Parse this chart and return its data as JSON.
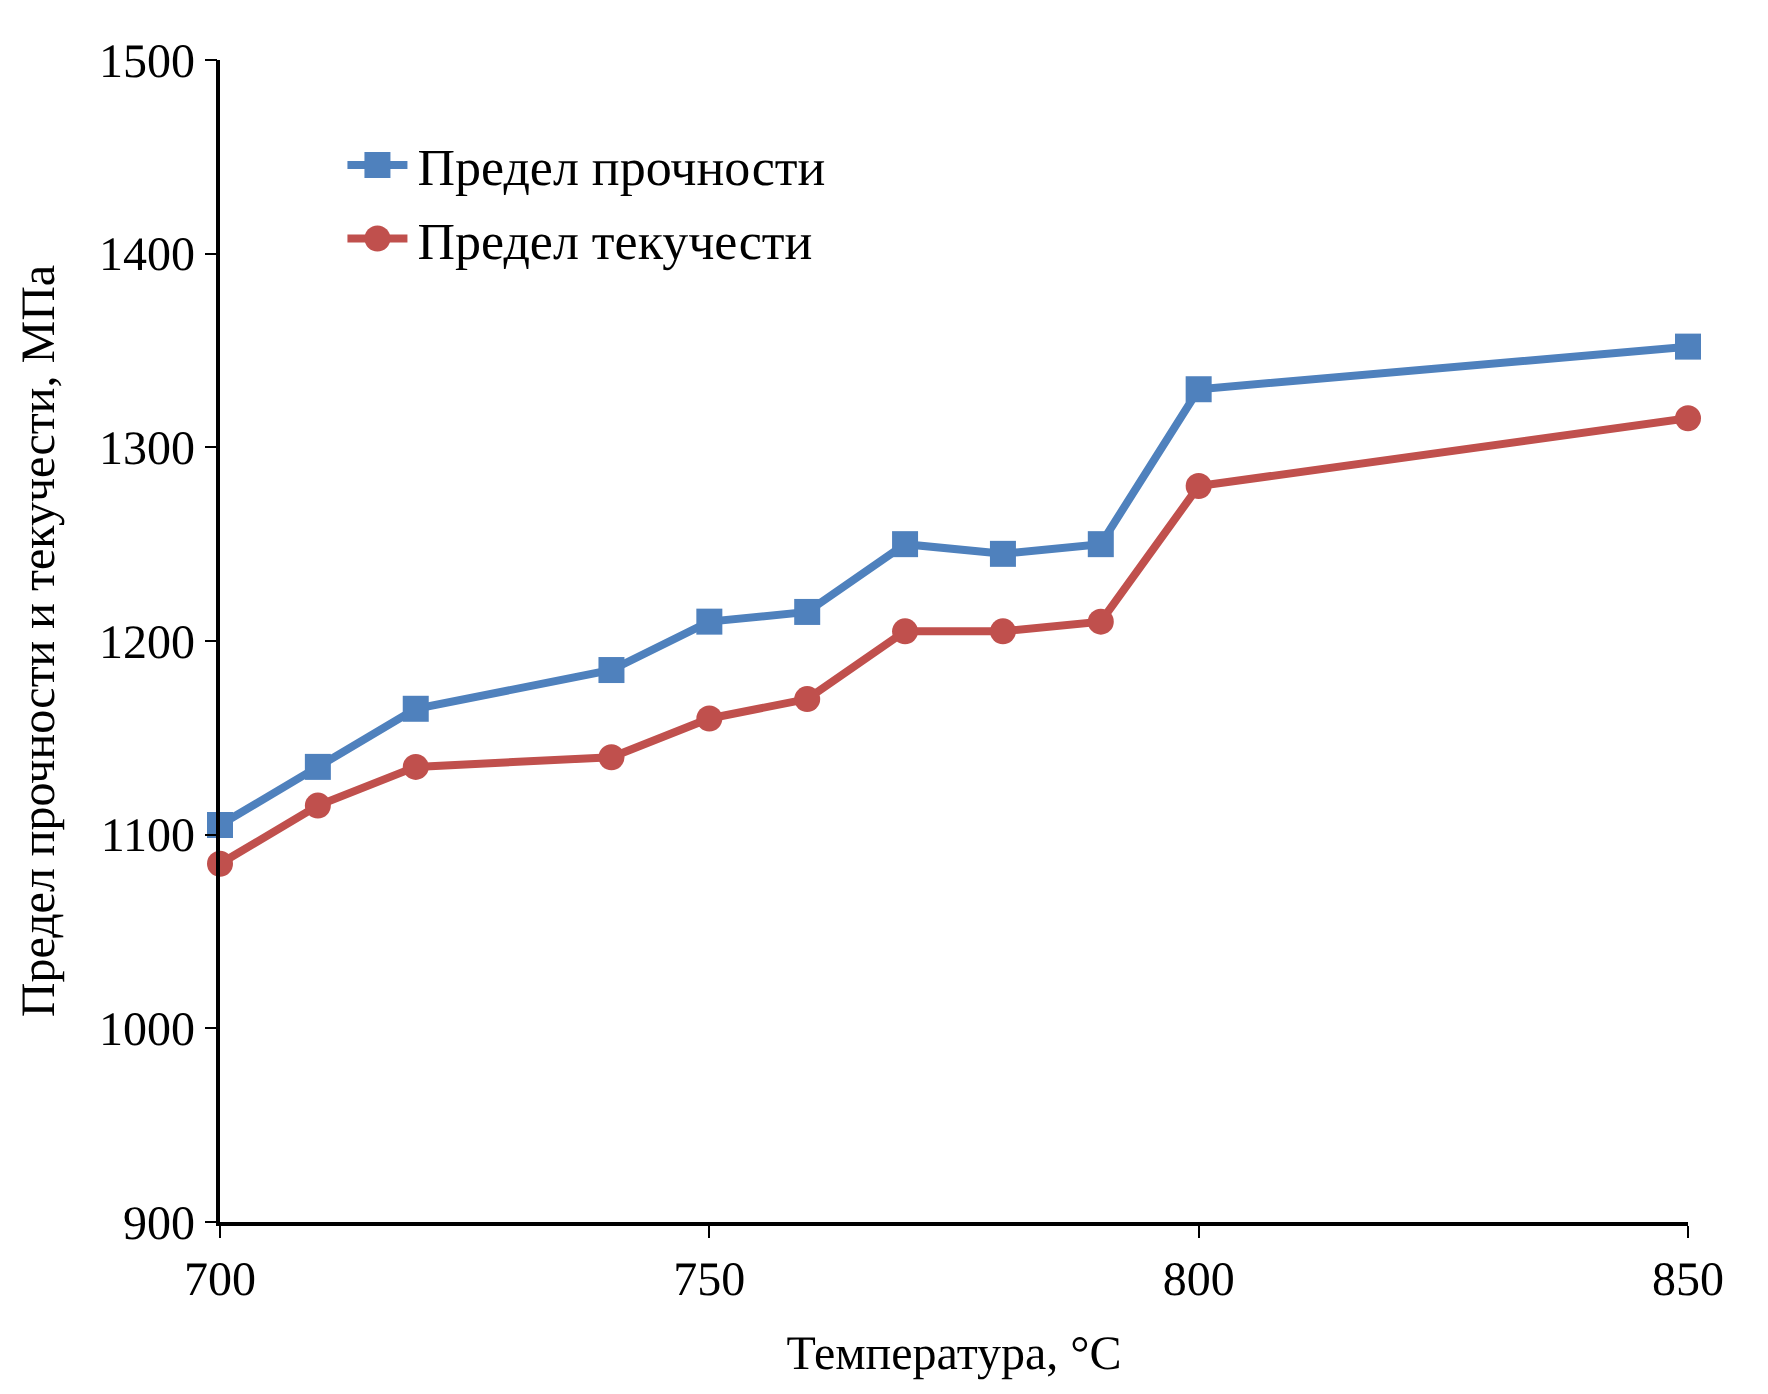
{
  "chart_data": {
    "type": "line",
    "xlabel": "Температура, °C",
    "ylabel": "Предел прочности и текучести, МПа",
    "x": [
      700,
      710,
      720,
      740,
      750,
      760,
      770,
      780,
      790,
      800,
      850
    ],
    "series": [
      {
        "name": "Предел прочности",
        "color": "#4f81bd",
        "marker": "square",
        "values": [
          1105,
          1135,
          1165,
          1185,
          1210,
          1215,
          1250,
          1245,
          1250,
          1330,
          1352
        ]
      },
      {
        "name": "Предел текучести",
        "color": "#c0504d",
        "marker": "circle",
        "values": [
          1085,
          1115,
          1135,
          1140,
          1160,
          1170,
          1205,
          1205,
          1210,
          1280,
          1315
        ]
      }
    ],
    "xlim": [
      700,
      850
    ],
    "xticks": [
      700,
      750,
      800,
      850
    ],
    "ylim": [
      900,
      1500
    ],
    "yticks": [
      900,
      1000,
      1100,
      1200,
      1300,
      1400,
      1500
    ],
    "legend": "top left",
    "line_style": "solid"
  }
}
